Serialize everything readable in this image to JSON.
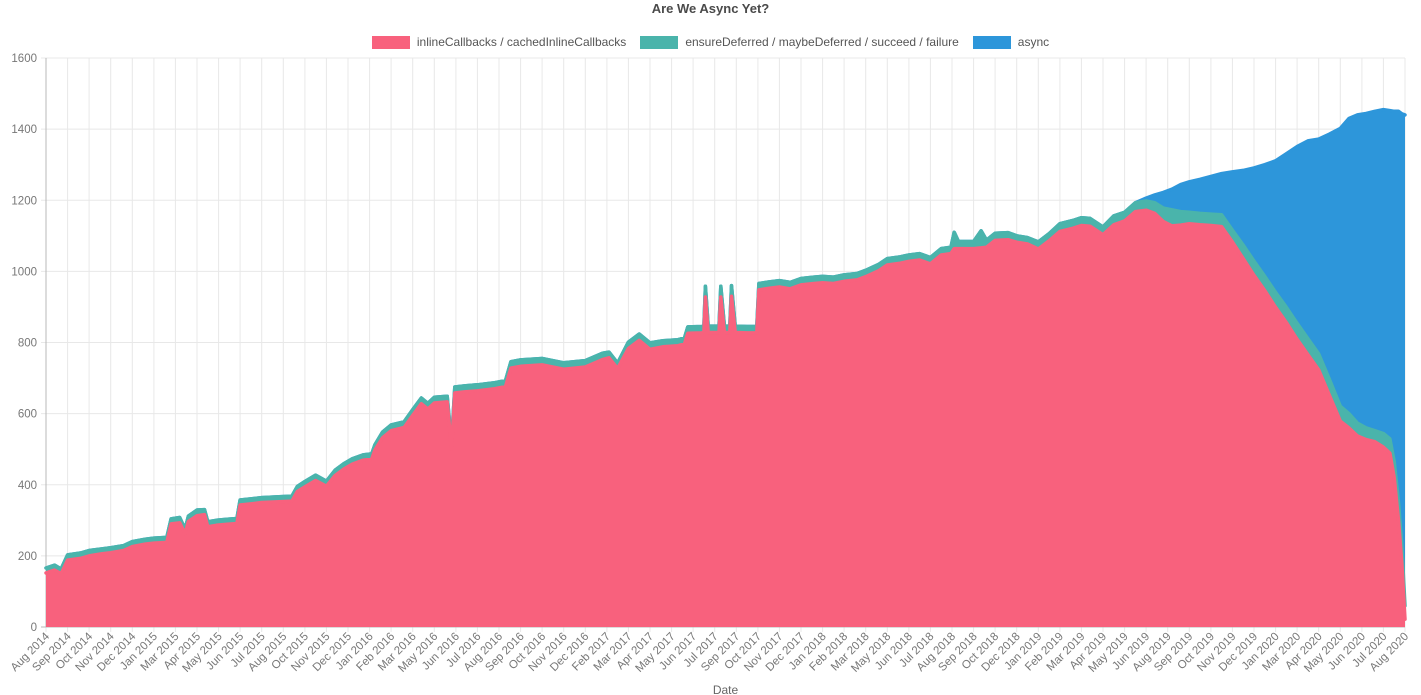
{
  "chart_data": {
    "type": "area",
    "stacked": true,
    "title": "Are We Async Yet?",
    "xlabel": "Date",
    "legend_position": "top",
    "grid": true,
    "ylim": [
      0,
      1600
    ],
    "y_ticks": [
      0,
      200,
      400,
      600,
      800,
      1000,
      1200,
      1400,
      1600
    ],
    "x_tick_labels": [
      "Aug 2014",
      "Sep 2014",
      "Oct 2014",
      "Nov 2014",
      "Dec 2014",
      "Jan 2015",
      "Mar 2015",
      "Apr 2015",
      "May 2015",
      "Jun 2015",
      "Jul 2015",
      "Aug 2015",
      "Oct 2015",
      "Nov 2015",
      "Dec 2015",
      "Jan 2016",
      "Feb 2016",
      "Mar 2016",
      "May 2016",
      "Jun 2016",
      "Jul 2016",
      "Aug 2016",
      "Sep 2016",
      "Oct 2016",
      "Nov 2016",
      "Dec 2016",
      "Feb 2017",
      "Mar 2017",
      "Apr 2017",
      "May 2017",
      "Jun 2017",
      "Jul 2017",
      "Sep 2017",
      "Oct 2017",
      "Nov 2017",
      "Dec 2017",
      "Jan 2018",
      "Feb 2018",
      "Mar 2018",
      "May 2018",
      "Jun 2018",
      "Jul 2018",
      "Aug 2018",
      "Sep 2018",
      "Oct 2018",
      "Dec 2018",
      "Jan 2019",
      "Feb 2019",
      "Mar 2019",
      "Apr 2019",
      "May 2019",
      "Jun 2019",
      "Aug 2019",
      "Sep 2019",
      "Oct 2019",
      "Nov 2019",
      "Dec 2019",
      "Jan 2020",
      "Mar 2020",
      "Apr 2020",
      "May 2020",
      "Jun 2020",
      "Jul 2020",
      "Aug 2020"
    ],
    "series": [
      {
        "name": "inlineCallbacks / cachedInlineCallbacks",
        "color": "#f8617d"
      },
      {
        "name": "ensureDeferred / maybeDeferred / succeed / failure",
        "color": "#4ab4ab"
      },
      {
        "name": "async",
        "color": "#2d96da"
      }
    ],
    "points_format": "[x_tick_index, inlineCallbacks, ensureDeferred_group, async]",
    "points": [
      [
        0,
        152,
        14,
        0
      ],
      [
        0.4,
        160,
        14,
        0
      ],
      [
        0.7,
        150,
        13,
        0
      ],
      [
        1,
        188,
        15,
        0
      ],
      [
        1.6,
        193,
        15,
        0
      ],
      [
        2,
        200,
        15,
        0
      ],
      [
        2.6,
        206,
        14,
        0
      ],
      [
        3,
        209,
        14,
        0
      ],
      [
        3.6,
        215,
        14,
        0
      ],
      [
        4,
        226,
        14,
        0
      ],
      [
        4.6,
        233,
        14,
        0
      ],
      [
        5,
        236,
        14,
        0
      ],
      [
        5.6,
        238,
        14,
        0
      ],
      [
        5.8,
        290,
        14,
        0
      ],
      [
        6.2,
        293,
        15,
        0
      ],
      [
        6.45,
        262,
        13,
        0
      ],
      [
        6.6,
        297,
        15,
        0
      ],
      [
        7,
        313,
        16,
        0
      ],
      [
        7.35,
        316,
        14,
        0
      ],
      [
        7.5,
        282,
        14,
        0
      ],
      [
        7.9,
        286,
        14,
        0
      ],
      [
        8.4,
        289,
        14,
        0
      ],
      [
        8.85,
        291,
        14,
        0
      ],
      [
        9,
        343,
        14,
        0
      ],
      [
        9.6,
        347,
        14,
        0
      ],
      [
        10,
        350,
        14,
        0
      ],
      [
        10.8,
        352,
        14,
        0
      ],
      [
        11.4,
        354,
        14,
        0
      ],
      [
        11.65,
        381,
        14,
        0
      ],
      [
        12,
        394,
        15,
        0
      ],
      [
        12.5,
        412,
        15,
        0
      ],
      [
        13,
        396,
        14,
        0
      ],
      [
        13.4,
        426,
        15,
        0
      ],
      [
        13.8,
        444,
        15,
        0
      ],
      [
        14.2,
        458,
        15,
        0
      ],
      [
        14.7,
        469,
        15,
        0
      ],
      [
        15.1,
        472,
        15,
        0
      ],
      [
        15.25,
        498,
        15,
        0
      ],
      [
        15.6,
        532,
        16,
        0
      ],
      [
        16,
        552,
        16,
        0
      ],
      [
        16.6,
        561,
        16,
        0
      ],
      [
        17,
        595,
        16,
        0
      ],
      [
        17.4,
        628,
        16,
        0
      ],
      [
        17.7,
        613,
        16,
        0
      ],
      [
        18,
        630,
        16,
        0
      ],
      [
        18.6,
        633,
        16,
        0
      ],
      [
        18.8,
        500,
        15,
        0
      ],
      [
        18.95,
        658,
        17,
        0
      ],
      [
        19.4,
        661,
        17,
        0
      ],
      [
        20,
        664,
        17,
        0
      ],
      [
        20.8,
        670,
        17,
        0
      ],
      [
        21.3,
        676,
        17,
        0
      ],
      [
        21.55,
        728,
        18,
        0
      ],
      [
        22,
        733,
        18,
        0
      ],
      [
        23,
        737,
        18,
        0
      ],
      [
        24,
        725,
        18,
        0
      ],
      [
        25,
        731,
        18,
        0
      ],
      [
        25.8,
        752,
        18,
        0
      ],
      [
        26.1,
        757,
        16,
        0
      ],
      [
        26.5,
        727,
        15,
        0
      ],
      [
        27,
        783,
        18,
        0
      ],
      [
        27.5,
        806,
        18,
        0
      ],
      [
        28,
        781,
        18,
        0
      ],
      [
        28.6,
        788,
        17,
        0
      ],
      [
        29.3,
        791,
        17,
        0
      ],
      [
        29.6,
        796,
        17,
        0
      ],
      [
        29.75,
        826,
        18,
        0
      ],
      [
        30.4,
        827,
        18,
        0
      ],
      [
        30.5,
        828,
        18,
        0
      ],
      [
        30.57,
        928,
        30,
        0
      ],
      [
        30.7,
        828,
        18,
        0
      ],
      [
        31.2,
        828,
        18,
        0
      ],
      [
        31.28,
        928,
        30,
        0
      ],
      [
        31.45,
        828,
        18,
        0
      ],
      [
        31.7,
        828,
        18,
        0
      ],
      [
        31.78,
        930,
        30,
        0
      ],
      [
        31.95,
        828,
        18,
        0
      ],
      [
        32.5,
        827,
        18,
        0
      ],
      [
        32.95,
        827,
        18,
        0
      ],
      [
        33.05,
        948,
        18,
        0
      ],
      [
        33.5,
        952,
        18,
        0
      ],
      [
        34,
        956,
        18,
        0
      ],
      [
        34.5,
        951,
        18,
        0
      ],
      [
        35,
        962,
        18,
        0
      ],
      [
        35.6,
        966,
        18,
        0
      ],
      [
        36,
        968,
        18,
        0
      ],
      [
        36.5,
        966,
        18,
        0
      ],
      [
        37,
        972,
        18,
        0
      ],
      [
        37.6,
        976,
        18,
        0
      ],
      [
        38,
        985,
        18,
        0
      ],
      [
        38.6,
        1002,
        18,
        0
      ],
      [
        39,
        1018,
        18,
        0
      ],
      [
        39.6,
        1023,
        18,
        0
      ],
      [
        40,
        1028,
        18,
        0
      ],
      [
        40.5,
        1032,
        18,
        0
      ],
      [
        41,
        1021,
        18,
        0
      ],
      [
        41.5,
        1046,
        18,
        0
      ],
      [
        41.95,
        1050,
        18,
        0
      ],
      [
        42.1,
        1064,
        46,
        0
      ],
      [
        42.3,
        1064,
        20,
        0
      ],
      [
        43,
        1064,
        20,
        0
      ],
      [
        43.35,
        1066,
        48,
        0
      ],
      [
        43.6,
        1068,
        20,
        0
      ],
      [
        44,
        1087,
        20,
        0
      ],
      [
        44.6,
        1089,
        20,
        0
      ],
      [
        45,
        1082,
        18,
        0
      ],
      [
        45.5,
        1077,
        18,
        0
      ],
      [
        46,
        1063,
        20,
        0
      ],
      [
        46.5,
        1086,
        20,
        0
      ],
      [
        47,
        1112,
        22,
        0
      ],
      [
        47.6,
        1121,
        22,
        0
      ],
      [
        48,
        1129,
        22,
        0
      ],
      [
        48.4,
        1127,
        22,
        0
      ],
      [
        49,
        1103,
        22,
        0
      ],
      [
        49.5,
        1131,
        25,
        0
      ],
      [
        50,
        1142,
        24,
        0
      ],
      [
        50.5,
        1168,
        25,
        0
      ],
      [
        51,
        1172,
        26,
        8
      ],
      [
        51.4,
        1163,
        30,
        22
      ],
      [
        51.8,
        1140,
        38,
        44
      ],
      [
        52.2,
        1128,
        45,
        58
      ],
      [
        52.6,
        1130,
        38,
        76
      ],
      [
        53,
        1134,
        32,
        86
      ],
      [
        53.5,
        1131,
        32,
        96
      ],
      [
        54,
        1129,
        32,
        106
      ],
      [
        54.5,
        1126,
        33,
        116
      ],
      [
        55,
        1083,
        33,
        164
      ],
      [
        55.5,
        1036,
        38,
        210
      ],
      [
        56,
        989,
        40,
        262
      ],
      [
        56.5,
        946,
        40,
        314
      ],
      [
        57,
        899,
        42,
        370
      ],
      [
        57.5,
        856,
        43,
        432
      ],
      [
        58,
        809,
        45,
        497
      ],
      [
        58.5,
        766,
        45,
        556
      ],
      [
        59,
        723,
        45,
        604
      ],
      [
        59.5,
        651,
        45,
        690
      ],
      [
        60,
        579,
        42,
        781
      ],
      [
        60.4,
        560,
        40,
        830
      ],
      [
        60.8,
        537,
        36,
        867
      ],
      [
        61.2,
        527,
        33,
        884
      ],
      [
        61.6,
        521,
        31,
        898
      ],
      [
        62,
        506,
        38,
        911
      ],
      [
        62.3,
        489,
        40,
        923
      ],
      [
        62.5,
        420,
        45,
        985
      ],
      [
        62.7,
        300,
        50,
        1100
      ],
      [
        62.85,
        180,
        50,
        1213
      ],
      [
        63,
        22,
        38,
        1380
      ]
    ]
  },
  "style": {
    "grid_color": "#e8e8e8",
    "axis_color": "#b9b9b9",
    "tick_text_color": "#777777",
    "title_text_color": "#4a4a4a",
    "legend_text_color": "#555555"
  }
}
